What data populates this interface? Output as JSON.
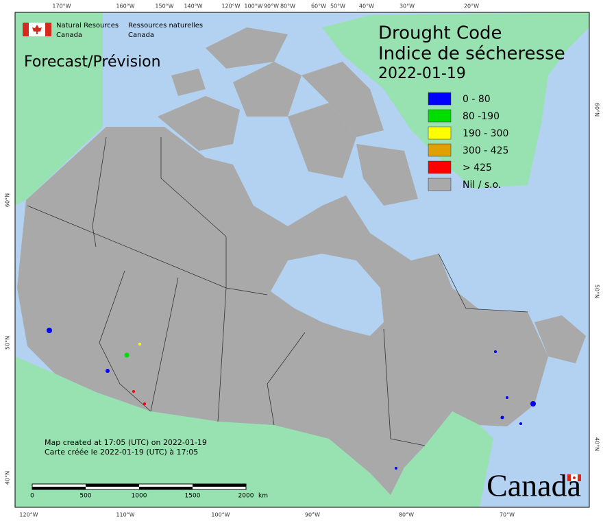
{
  "logo": {
    "en_lines": [
      "Natural Resources",
      "Canada"
    ],
    "fr_lines": [
      "Ressources naturelles",
      "Canada"
    ]
  },
  "map": {
    "product": "Forecast/Prévision",
    "title_lines": [
      "Drought Code",
      "Indice de sécheresse"
    ],
    "date": "2022-01-19",
    "legend": [
      {
        "label": "0 - 80",
        "color": "#0000ff"
      },
      {
        "label": "80 -190",
        "color": "#00dd00"
      },
      {
        "label": "190 - 300",
        "color": "#ffff00"
      },
      {
        "label": "300 - 425",
        "color": "#e0a000"
      },
      {
        "label": "> 425",
        "color": "#ff0000"
      },
      {
        "label": "Nil / s.o.",
        "color": "#a9a9a9"
      }
    ],
    "credits": [
      "Map created at 17:05 (UTC) on 2022-01-19",
      "Carte créée le 2022-01-19 (UTC) à 17:05"
    ],
    "scale_bar": {
      "labels": [
        0,
        500,
        1000,
        1500,
        2000
      ],
      "unit": "km"
    },
    "graticule": {
      "top": [
        "170°W",
        "160°W",
        "150°W",
        "140°W",
        "120°W",
        "100°W",
        "90°W",
        "80°W",
        "60°W",
        "50°W",
        "40°W",
        "30°W",
        "20°W"
      ],
      "bottom": [
        "120°W",
        "110°W",
        "100°W",
        "90°W",
        "80°W",
        "70°W"
      ],
      "left": [
        "60°N",
        "50°N",
        "40°N"
      ],
      "right": [
        "60°N",
        "50°N",
        "40°N"
      ]
    },
    "wordmark": "Canada"
  }
}
